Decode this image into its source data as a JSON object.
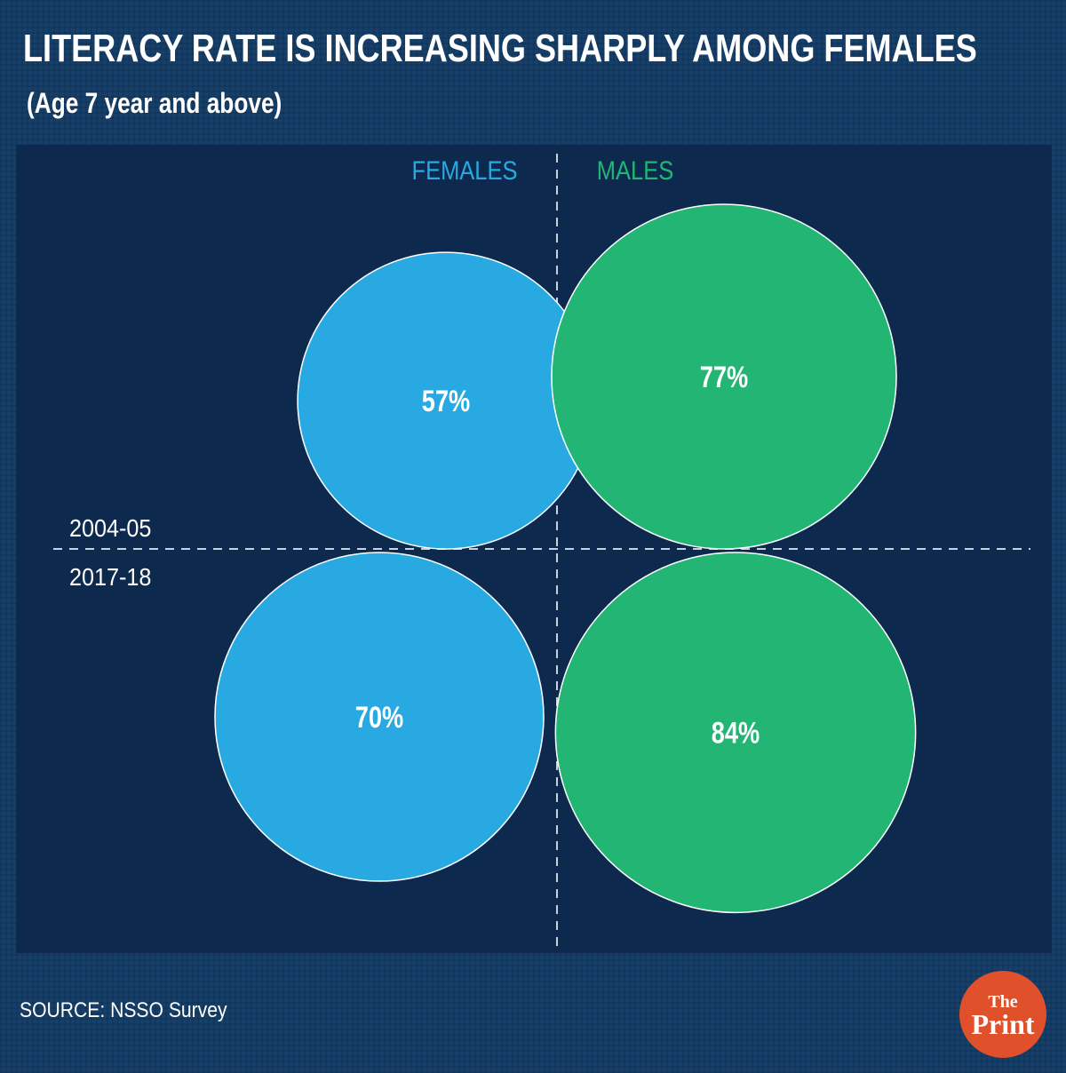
{
  "header": {
    "title": "LITERACY RATE IS INCREASING SHARPLY AMONG FEMALES",
    "subtitle": "(Age 7 year and above)"
  },
  "footer": {
    "source": "SOURCE: NSSO Survey",
    "logo_line1": "The",
    "logo_line2": "Print"
  },
  "colors": {
    "females": "#29a9e1",
    "males": "#22b573",
    "panel": "#0d2a4e",
    "logo": "#e0502a"
  },
  "chart_data": {
    "type": "bubble",
    "columns": [
      "FEMALES",
      "MALES"
    ],
    "rows": [
      "2004-05",
      "2017-18"
    ],
    "series": [
      {
        "name": "FEMALES",
        "values": [
          57,
          70
        ],
        "labels": [
          "57%",
          "70%"
        ]
      },
      {
        "name": "MALES",
        "values": [
          77,
          84
        ],
        "labels": [
          "77%",
          "84%"
        ]
      }
    ],
    "unit": "%"
  }
}
